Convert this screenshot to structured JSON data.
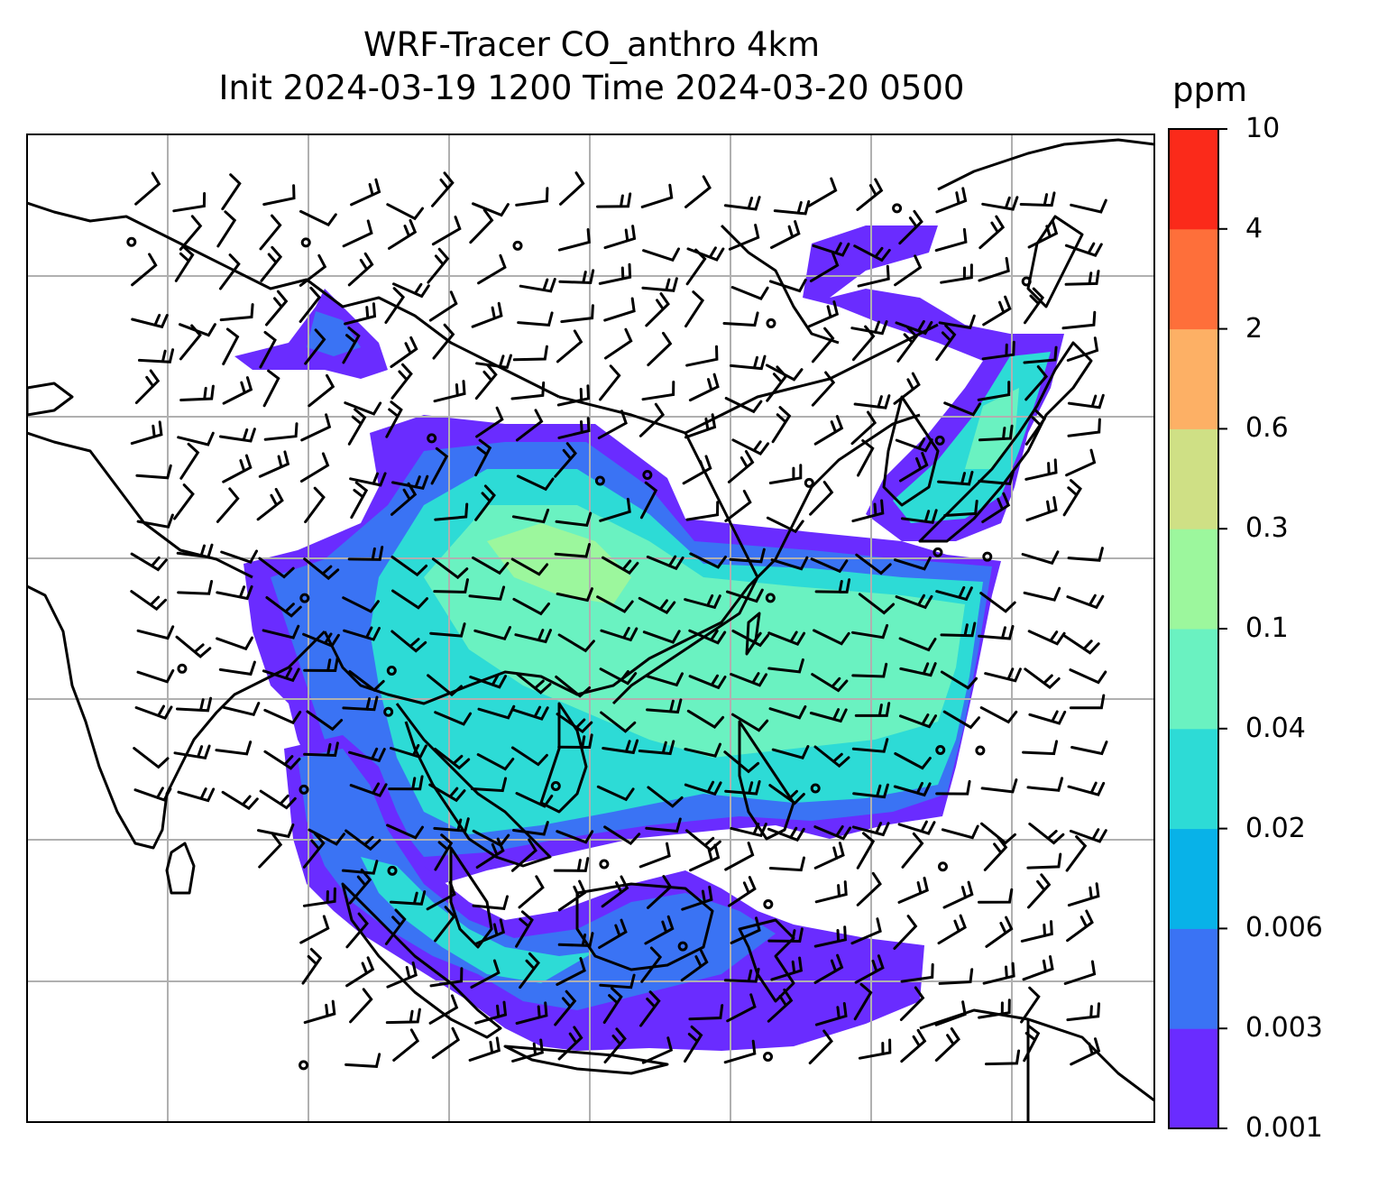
{
  "title": {
    "line1": "WRF-Tracer CO_anthro 4km",
    "line2": "Init 2024-03-19 1200 Time 2024-03-20 0500"
  },
  "colorbar": {
    "unit": "ppm",
    "labels": [
      "0.001",
      "0.003",
      "0.006",
      "0.02",
      "0.04",
      "0.1",
      "0.3",
      "0.6",
      "2",
      "4",
      "10"
    ],
    "colors": [
      "#6a2cff",
      "#3a73f4",
      "#08b2e8",
      "#2ddbd6",
      "#6af2c1",
      "#9cf79d",
      "#cfe085",
      "#fdb065",
      "#fe6f3a",
      "#fb2a1a"
    ]
  },
  "map": {
    "grid_lines": "on",
    "coastline_color": "#000000",
    "wind_barbs": "black"
  }
}
